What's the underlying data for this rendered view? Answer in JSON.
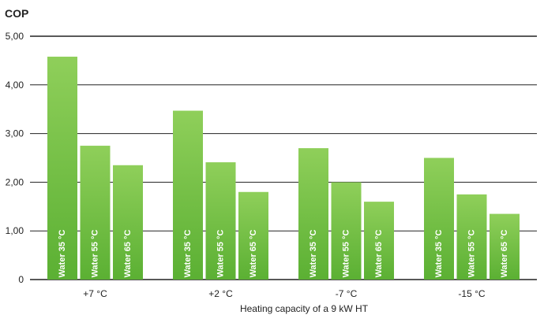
{
  "chart_data": {
    "type": "bar",
    "ylabel": "COP",
    "xlabel": "Heating capacity of a 9 kW HT",
    "ylim": [
      0,
      5
    ],
    "yticks": [
      "0",
      "1,00",
      "2,00",
      "3,00",
      "4,00",
      "5,00"
    ],
    "grid": true,
    "categories": [
      "+7 °C",
      "+2 °C",
      "-7 °C",
      "-15 °C"
    ],
    "series": [
      {
        "name": "Water 35 °C",
        "values": [
          4.58,
          3.47,
          2.7,
          2.5
        ]
      },
      {
        "name": "Water 55 °C",
        "values": [
          2.75,
          2.41,
          2.0,
          1.75
        ]
      },
      {
        "name": "Water 65 °C",
        "values": [
          2.35,
          1.8,
          1.6,
          1.35
        ]
      }
    ],
    "colors": {
      "bar_top": "#8fcf5a",
      "bar_bottom": "#5bb033",
      "axis": "#222222"
    }
  }
}
